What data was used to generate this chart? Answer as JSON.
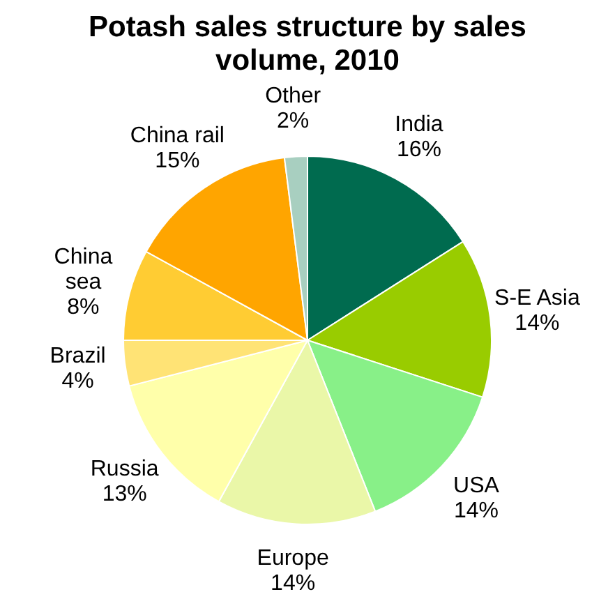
{
  "chart_data": {
    "type": "pie",
    "title": "Potash sales structure by sales volume, 2010",
    "categories": [
      "India",
      "S-E Asia",
      "USA",
      "Europe",
      "Russia",
      "Brazil",
      "China sea",
      "China rail",
      "Other"
    ],
    "values": [
      16,
      14,
      14,
      14,
      13,
      4,
      8,
      15,
      2
    ],
    "colors": [
      "#006b4f",
      "#99cc00",
      "#88f088",
      "#eaf7a8",
      "#ffffaa",
      "#ffe375",
      "#ffcc33",
      "#ffa500",
      "#a8cfc0"
    ],
    "value_labels": [
      "16%",
      "14%",
      "14%",
      "14%",
      "13%",
      "4%",
      "8%",
      "15%",
      "2%"
    ],
    "legend": false
  }
}
